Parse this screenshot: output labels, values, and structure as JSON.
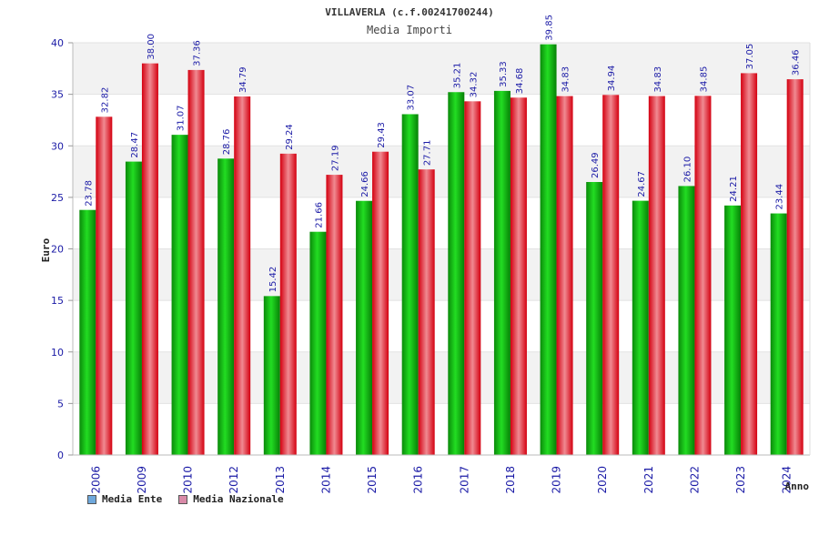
{
  "chart_data": {
    "type": "bar",
    "title": "VILLAVERLA (c.f.00241700244)",
    "subtitle": "Media Importi",
    "xlabel": "Anno",
    "ylabel": "Euro",
    "ylim": [
      0,
      40
    ],
    "yticks": [
      0,
      5,
      10,
      15,
      20,
      25,
      30,
      35,
      40
    ],
    "grid": true,
    "legend_position": "bottom-left",
    "categories": [
      "2006",
      "2009",
      "2010",
      "2012",
      "2013",
      "2014",
      "2015",
      "2016",
      "2017",
      "2018",
      "2019",
      "2020",
      "2021",
      "2022",
      "2023",
      "2024"
    ],
    "series": [
      {
        "name": "Media Ente",
        "color": "#00b400",
        "legend_color": "#6fa8dc",
        "values": [
          23.78,
          28.47,
          31.07,
          28.76,
          15.42,
          21.66,
          24.66,
          33.07,
          35.21,
          35.33,
          39.85,
          26.49,
          24.67,
          26.1,
          24.21,
          23.44
        ],
        "labels": [
          "23.78",
          "28.47",
          "31.07",
          "28.76",
          "15.42",
          "21.66",
          "24.66",
          "33.07",
          "35.21",
          "35.33",
          "39.85",
          "26.49",
          "24.67",
          "26.10",
          "24.21",
          "23.44"
        ]
      },
      {
        "name": "Media Nazionale",
        "color": "#e8101e",
        "legend_color": "#d98aa8",
        "values": [
          32.82,
          38.0,
          37.36,
          34.79,
          29.24,
          27.19,
          29.43,
          27.71,
          34.32,
          34.68,
          34.83,
          34.94,
          34.83,
          34.85,
          37.05,
          36.46
        ],
        "labels": [
          "32.82",
          "38.00",
          "37.36",
          "34.79",
          "29.24",
          "27.19",
          "29.43",
          "27.71",
          "34.32",
          "34.68",
          "34.83",
          "34.94",
          "34.83",
          "34.85",
          "37.05",
          "36.46"
        ]
      }
    ]
  }
}
